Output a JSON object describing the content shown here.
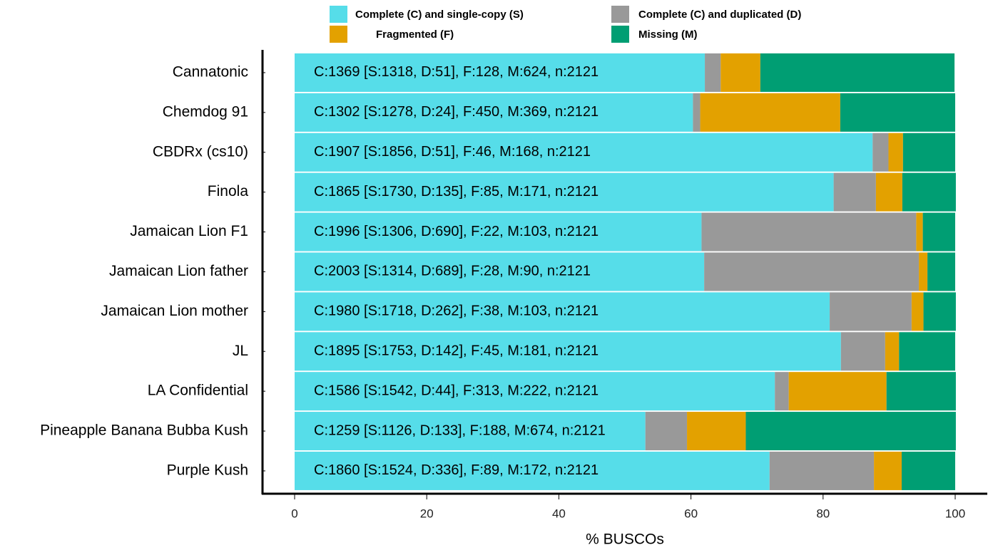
{
  "chart_data": {
    "type": "stacked-barh",
    "categories": [
      "Cannatonic",
      "Chemdog 91",
      "CBDRx (cs10)",
      "Finola",
      "Jamaican Lion F1",
      "Jamaican Lion father",
      "Jamaican Lion mother",
      "JL",
      "LA Confidential",
      "Pineapple Banana Bubba Kush",
      "Purple Kush"
    ],
    "annotations": [
      "C:1369 [S:1318, D:51], F:128, M:624, n:2121",
      "C:1302 [S:1278, D:24], F:450, M:369, n:2121",
      "C:1907 [S:1856, D:51], F:46, M:168, n:2121",
      "C:1865 [S:1730, D:135], F:85, M:171, n:2121",
      "C:1996 [S:1306, D:690], F:22, M:103, n:2121",
      "C:2003 [S:1314, D:689], F:28, M:90, n:2121",
      "C:1980 [S:1718, D:262], F:38, M:103, n:2121",
      "C:1895 [S:1753, D:142], F:45, M:181, n:2121",
      "C:1586 [S:1542, D:44], F:313, M:222, n:2121",
      "C:1259 [S:1126, D:133], F:188, M:674, n:2121",
      "C:1860 [S:1524, D:336], F:89, M:172, n:2121"
    ],
    "series": [
      {
        "name": "Complete (C) and single-copy (S)",
        "color": "#56dde9",
        "values": [
          62.1,
          60.3,
          87.5,
          81.6,
          61.6,
          62.0,
          81.0,
          82.7,
          72.7,
          53.1,
          71.9
        ]
      },
      {
        "name": "Complete (C) and duplicated (D)",
        "color": "#999999",
        "values": [
          2.4,
          1.1,
          2.4,
          6.4,
          32.5,
          32.5,
          12.4,
          6.7,
          2.1,
          6.3,
          15.8
        ]
      },
      {
        "name": "Fragmented (F)",
        "color": "#e3a100",
        "values": [
          6.0,
          21.2,
          2.2,
          4.0,
          1.0,
          1.3,
          1.8,
          2.1,
          14.8,
          8.9,
          4.2
        ]
      },
      {
        "name": "Missing (M)",
        "color": "#009e73",
        "values": [
          29.4,
          17.4,
          7.9,
          8.1,
          4.9,
          4.2,
          4.9,
          8.5,
          10.5,
          31.8,
          8.1
        ]
      }
    ],
    "x_label": "% BUSCOs",
    "xlim": [
      0,
      100
    ],
    "xticks": [
      0,
      20,
      40,
      60,
      80,
      100
    ]
  }
}
